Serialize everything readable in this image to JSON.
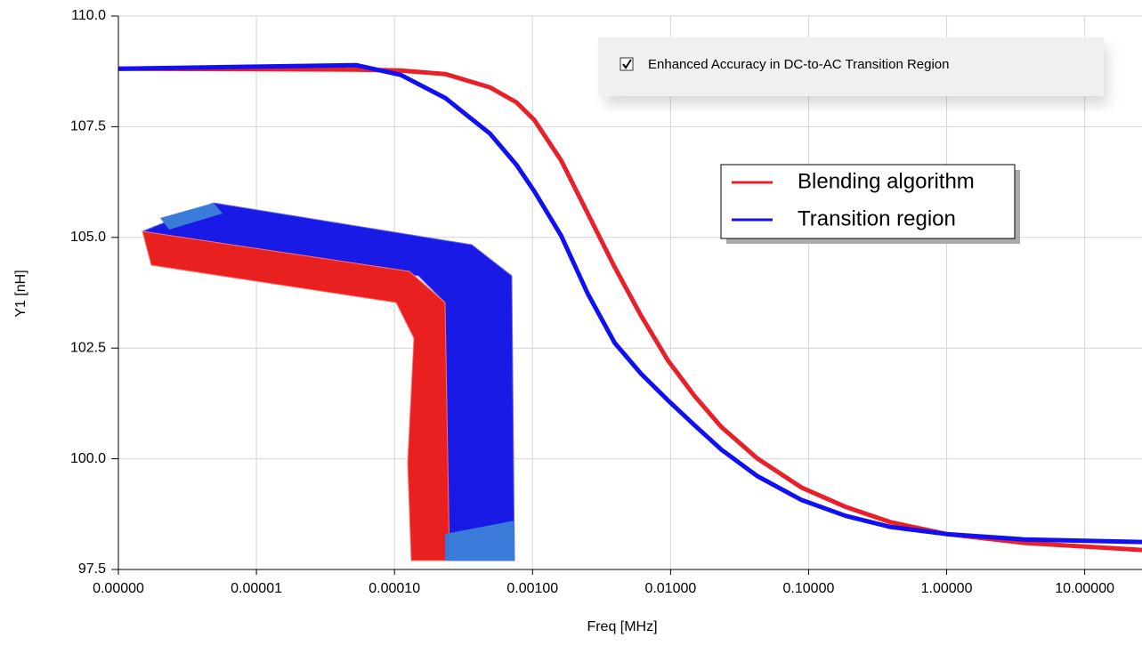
{
  "chart_data": {
    "type": "line",
    "x_label": "Freq [MHz]",
    "y_label": "Y1 [nH]",
    "checkbox_label": "Enhanced Accuracy in DC-to-AC Transition Region",
    "checkbox_checked": true,
    "xlog": true,
    "grid": true,
    "legend": "upper right",
    "xlim": [
      1e-06,
      26
    ],
    "ylim": [
      97.5,
      110
    ],
    "xticks": [
      {
        "value": 1e-06,
        "label": "0.00000"
      },
      {
        "value": 1e-05,
        "label": "0.00001"
      },
      {
        "value": 0.0001,
        "label": "0.00010"
      },
      {
        "value": 0.001,
        "label": "0.00100"
      },
      {
        "value": 0.01,
        "label": "0.01000"
      },
      {
        "value": 0.1,
        "label": "0.10000"
      },
      {
        "value": 1,
        "label": "1.00000"
      },
      {
        "value": 10,
        "label": "10.00000"
      }
    ],
    "yticks": [
      97.5,
      {
        "value": 100,
        "label": "100.0"
      },
      102.5,
      {
        "value": 105,
        "label": "105.0"
      },
      107.5,
      {
        "value": 110,
        "label": "110.0"
      }
    ],
    "x": [
      1e-06,
      5.28e-05,
      0.000111,
      0.000233,
      0.00049,
      0.000765,
      0.00103,
      0.00161,
      0.00251,
      0.00393,
      0.00612,
      0.00957,
      0.0149,
      0.0233,
      0.0424,
      0.0889,
      0.186,
      0.391,
      1.0,
      3.63,
      26
    ],
    "series": [
      {
        "name": "Blending algorithm",
        "color": "#e8202a",
        "values": [
          108.81,
          108.79,
          108.77,
          108.69,
          108.39,
          108.05,
          107.65,
          106.74,
          105.54,
          104.33,
          103.23,
          102.22,
          101.42,
          100.72,
          100.01,
          99.35,
          98.91,
          98.57,
          98.3,
          98.1,
          97.94
        ]
      },
      {
        "name": "Transition region",
        "color": "#1010f0",
        "values": [
          108.81,
          108.89,
          108.67,
          108.15,
          107.35,
          106.64,
          106.04,
          105.04,
          103.73,
          102.62,
          101.92,
          101.32,
          100.76,
          100.21,
          99.61,
          99.07,
          98.71,
          98.46,
          98.3,
          98.18,
          98.12
        ]
      }
    ]
  }
}
